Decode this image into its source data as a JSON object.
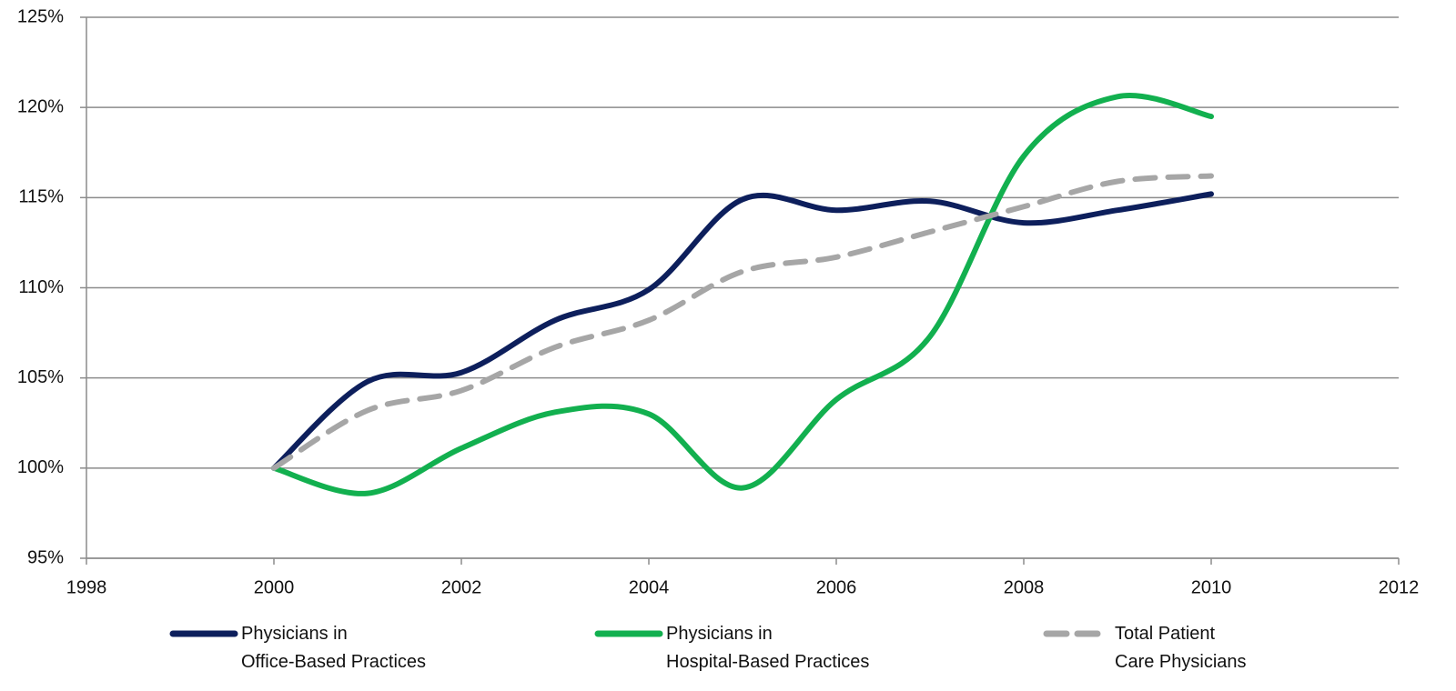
{
  "chart_data": {
    "type": "line",
    "x": [
      2000,
      2001,
      2002,
      2003,
      2004,
      2005,
      2006,
      2007,
      2008,
      2009,
      2010
    ],
    "series": [
      {
        "name": "Physicians in\nOffice-Based Practices",
        "color": "#0d1f5c",
        "dashed": false,
        "values": [
          100,
          104.8,
          105.3,
          108.2,
          109.9,
          114.9,
          114.3,
          114.8,
          113.6,
          114.3,
          115.2
        ]
      },
      {
        "name": "Physicians in\nHospital-Based Practices",
        "color": "#12b04f",
        "dashed": false,
        "values": [
          100,
          98.6,
          101.1,
          103.1,
          103.0,
          98.9,
          103.8,
          107.3,
          117.3,
          120.6,
          119.5
        ]
      },
      {
        "name": "Total Patient\nCare Physicians",
        "color": "#a6a6a6",
        "dashed": true,
        "values": [
          100,
          103.2,
          104.3,
          106.7,
          108.2,
          110.9,
          111.7,
          113.1,
          114.5,
          115.9,
          116.2
        ]
      }
    ],
    "xlim": [
      1998,
      2012
    ],
    "xticks": [
      1998,
      2000,
      2002,
      2004,
      2006,
      2008,
      2010,
      2012
    ],
    "ylim": [
      95,
      125
    ],
    "yticks": [
      {
        "value": 95,
        "label": "95%"
      },
      {
        "value": 100,
        "label": "100%"
      },
      {
        "value": 105,
        "label": "105%"
      },
      {
        "value": 110,
        "label": "110%"
      },
      {
        "value": 115,
        "label": "115%"
      },
      {
        "value": 120,
        "label": "120%"
      },
      {
        "value": 125,
        "label": "125%"
      }
    ],
    "grid": true,
    "legend": "bottom"
  }
}
